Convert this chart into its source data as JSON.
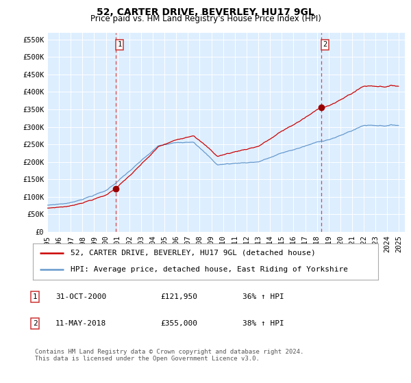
{
  "title": "52, CARTER DRIVE, BEVERLEY, HU17 9GL",
  "subtitle": "Price paid vs. HM Land Registry's House Price Index (HPI)",
  "ylabel_ticks": [
    "£0",
    "£50K",
    "£100K",
    "£150K",
    "£200K",
    "£250K",
    "£300K",
    "£350K",
    "£400K",
    "£450K",
    "£500K",
    "£550K"
  ],
  "ytick_values": [
    0,
    50000,
    100000,
    150000,
    200000,
    250000,
    300000,
    350000,
    400000,
    450000,
    500000,
    550000
  ],
  "ylim": [
    0,
    570000
  ],
  "xlim_start": 1995.0,
  "xlim_end": 2025.5,
  "marker1_x": 2000.83,
  "marker1_y": 121950,
  "marker2_x": 2018.36,
  "marker2_y": 355000,
  "vline1_x": 2000.83,
  "vline2_x": 2018.36,
  "legend_line1": "52, CARTER DRIVE, BEVERLEY, HU17 9GL (detached house)",
  "legend_line2": "HPI: Average price, detached house, East Riding of Yorkshire",
  "table_row1_num": "1",
  "table_row1_date": "31-OCT-2000",
  "table_row1_price": "£121,950",
  "table_row1_change": "36% ↑ HPI",
  "table_row2_num": "2",
  "table_row2_date": "11-MAY-2018",
  "table_row2_price": "£355,000",
  "table_row2_change": "38% ↑ HPI",
  "footer": "Contains HM Land Registry data © Crown copyright and database right 2024.\nThis data is licensed under the Open Government Licence v3.0.",
  "red_color": "#cc0000",
  "blue_color": "#6699cc",
  "marker_color": "#990000",
  "bg_color": "#ddeeff",
  "grid_color": "#ccddee",
  "vline_color": "#dd4444",
  "fig_bg": "#ffffff",
  "title_fontsize": 10,
  "subtitle_fontsize": 8.5,
  "tick_fontsize": 7.5,
  "legend_fontsize": 8
}
